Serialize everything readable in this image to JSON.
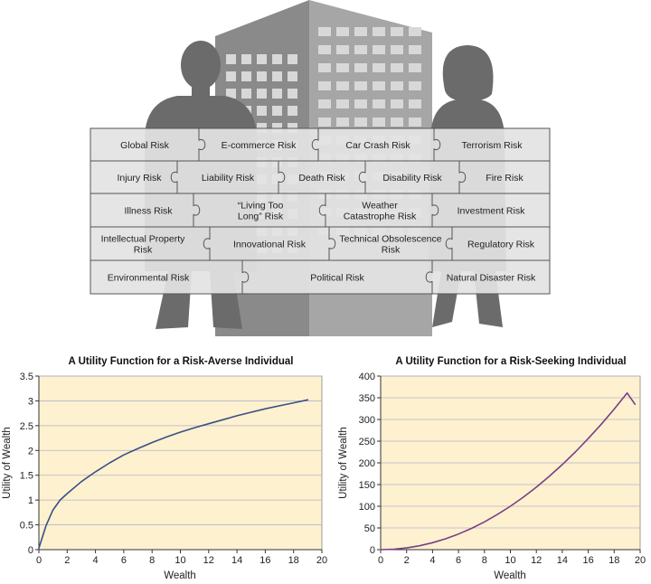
{
  "illustration": {
    "risks": [
      [
        "Global Risk",
        "E-commerce Risk",
        "Car Crash Risk",
        "Terrorism Risk"
      ],
      [
        "Injury Risk",
        "Liability Risk",
        "Death Risk",
        "Disability Risk",
        "Fire Risk"
      ],
      [
        "Illness Risk",
        "“Living Too\nLong” Risk",
        "Weather\nCatastrophe Risk",
        "Investment Risk"
      ],
      [
        "Intellectual Property\nRisk",
        "Innovational Risk",
        "Technical Obsolescence\nRisk",
        "Regulatory Risk"
      ],
      [
        "Environmental Risk",
        "Political Risk",
        "Natural Disaster Risk"
      ]
    ],
    "colors": {
      "puzzle_fill": "#e3e3e3",
      "puzzle_line": "#555555",
      "silhouette": "#6b6b6b",
      "building_front": "#8a8a8a",
      "building_side": "#a6a6a6",
      "window": "#d8d8d8"
    }
  },
  "chart_data": [
    {
      "type": "line",
      "title": "A Utility Function for a Risk-Averse Individual",
      "xlabel": "Wealth",
      "ylabel": "Utility of Wealth",
      "xlim": [
        0,
        20
      ],
      "ylim": [
        0,
        3.5
      ],
      "xticks": [
        0,
        2,
        4,
        6,
        8,
        10,
        12,
        14,
        16,
        18,
        20
      ],
      "yticks": [
        0,
        0.5,
        1,
        1.5,
        2,
        2.5,
        3,
        3.5
      ],
      "ytick_labels": [
        "0",
        "0.5",
        "1",
        "1.5",
        "2",
        "2.5",
        "3",
        "3.5"
      ],
      "grid": "horizontal",
      "series": [
        {
          "color": "#3a4f86",
          "x": [
            0,
            0.5,
            1,
            1.5,
            2,
            3,
            4,
            5,
            6,
            7,
            8,
            9,
            10,
            11,
            12,
            13,
            14,
            15,
            16,
            17,
            18,
            19
          ],
          "y": [
            0.03,
            0.48,
            0.8,
            1.0,
            1.13,
            1.37,
            1.57,
            1.75,
            1.91,
            2.04,
            2.16,
            2.27,
            2.37,
            2.46,
            2.54,
            2.62,
            2.7,
            2.77,
            2.84,
            2.9,
            2.96,
            3.02
          ]
        }
      ]
    },
    {
      "type": "line",
      "title": "A Utility Function for a Risk-Seeking Individual",
      "xlabel": "Wealth",
      "ylabel": "Utility of Wealth",
      "xlim": [
        0,
        20
      ],
      "ylim": [
        0,
        400
      ],
      "xticks": [
        0,
        2,
        4,
        6,
        8,
        10,
        12,
        14,
        16,
        18,
        20
      ],
      "yticks": [
        0,
        50,
        100,
        150,
        200,
        250,
        300,
        350,
        400
      ],
      "ytick_labels": [
        "0",
        "50",
        "100",
        "150",
        "200",
        "250",
        "300",
        "350",
        "400"
      ],
      "grid": "horizontal",
      "series": [
        {
          "color": "#7a3f86",
          "x": [
            0,
            1,
            2,
            3,
            4,
            5,
            6,
            7,
            8,
            9,
            10,
            11,
            12,
            13,
            14,
            15,
            16,
            17,
            18,
            19,
            19.6
          ],
          "y": [
            0,
            1,
            4,
            9,
            16,
            25,
            36,
            49,
            64,
            81,
            100,
            121,
            144,
            169,
            196,
            225,
            256,
            289,
            324,
            361,
            335
          ]
        }
      ]
    }
  ]
}
